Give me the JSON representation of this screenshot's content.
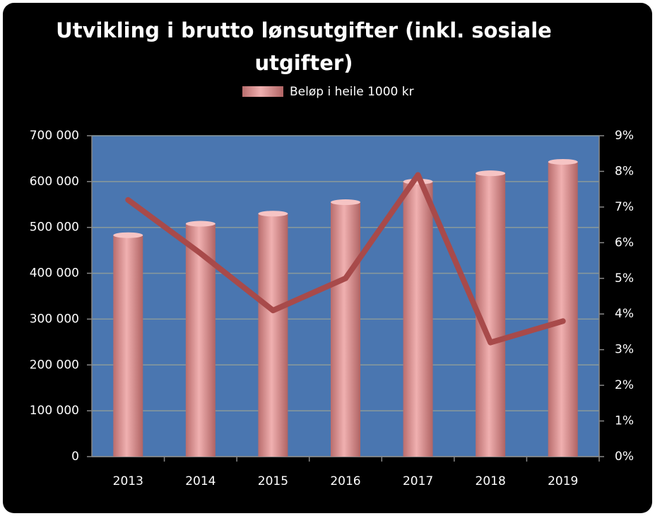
{
  "chart_data": {
    "type": "bar",
    "title": "Utvikling i brutto lønsutgifter  (inkl. sosiale utgifter)",
    "categories": [
      "2013",
      "2014",
      "2015",
      "2016",
      "2017",
      "2018",
      "2019"
    ],
    "series": [
      {
        "name": "Beløp i heile 1000 kr",
        "type": "bar",
        "color": "#e09a9a",
        "values": [
          483000,
          508000,
          530000,
          555000,
          600000,
          618000,
          643000
        ]
      },
      {
        "type": "line",
        "axis": "y2",
        "color": "#a84a4a",
        "values": [
          7.2,
          5.7,
          4.1,
          5.0,
          7.9,
          3.2,
          3.8
        ]
      }
    ],
    "ylim": [
      0,
      700000
    ],
    "yticks": [
      0,
      {
        "value": 100000,
        "label": "100 000"
      },
      {
        "value": 200000,
        "label": "200 000"
      },
      {
        "value": 300000,
        "label": "300 000"
      },
      {
        "value": 400000,
        "label": "400 000"
      },
      {
        "value": 500000,
        "label": "500 000"
      },
      {
        "value": 600000,
        "label": "600 000"
      },
      {
        "value": 700000,
        "label": "700 000"
      }
    ],
    "y2lim": [
      0,
      9
    ],
    "y2ticks": [
      {
        "value": 0,
        "label": "0%"
      },
      {
        "value": 1,
        "label": "1%"
      },
      {
        "value": 2,
        "label": "2%"
      },
      {
        "value": 3,
        "label": "3%"
      },
      {
        "value": 4,
        "label": "4%"
      },
      {
        "value": 5,
        "label": "5%"
      },
      {
        "value": 6,
        "label": "6%"
      },
      {
        "value": 7,
        "label": "7%"
      },
      {
        "value": 8,
        "label": "8%"
      },
      {
        "value": 9,
        "label": "9%"
      }
    ],
    "grid": true,
    "plot_background": "#4a76b0",
    "legend": "top"
  }
}
